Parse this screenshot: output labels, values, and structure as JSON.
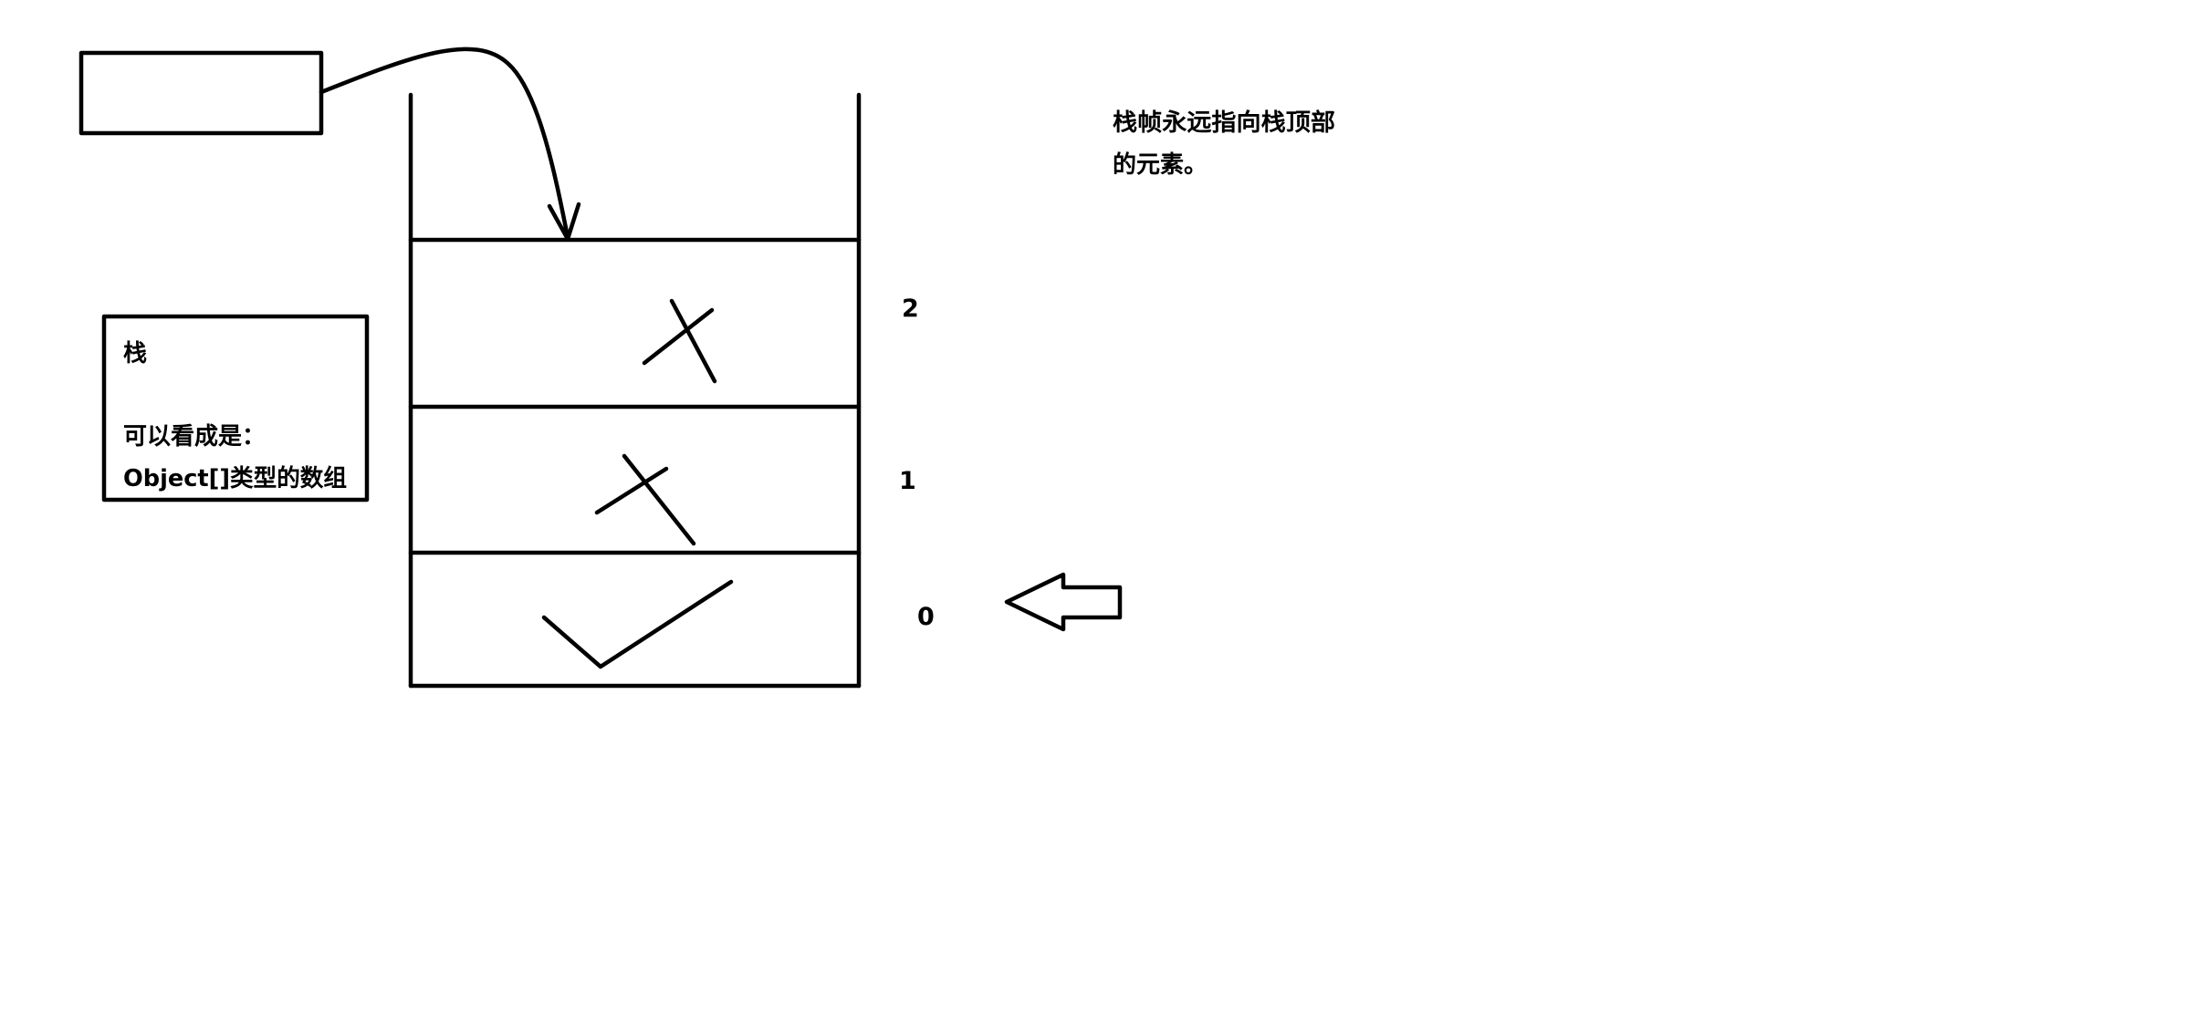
{
  "stack_legend": {
    "title": "栈",
    "line1": "可以看成是：",
    "line2": "Object[]类型的数组"
  },
  "stack_slots": [
    {
      "index": "2",
      "mark": "cross"
    },
    {
      "index": "1",
      "mark": "cross"
    },
    {
      "index": "0",
      "mark": "check"
    }
  ],
  "note": {
    "line1": "栈帧永远指向栈顶部",
    "line2": "的元素。"
  },
  "colors": {
    "ink": "#000000",
    "background": "#ffffff"
  }
}
